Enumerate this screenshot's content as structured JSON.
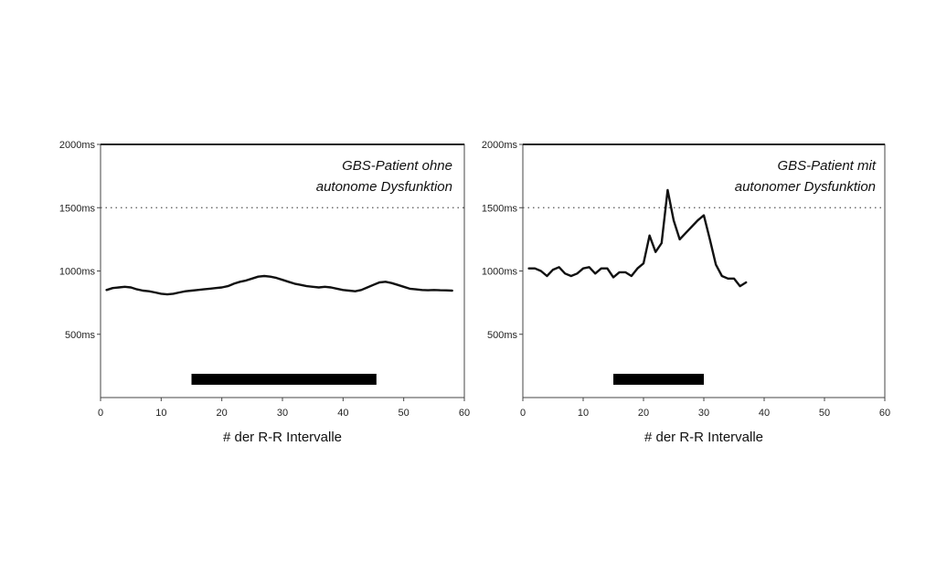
{
  "chart_data": [
    {
      "type": "line",
      "xlabel": "# der R-R Intervalle",
      "ylabel": "",
      "xlim": [
        0,
        60
      ],
      "ylim": [
        0,
        2000
      ],
      "xticks": [
        0,
        10,
        20,
        30,
        40,
        50,
        60
      ],
      "yticks": [
        {
          "value": 500,
          "label": "500ms"
        },
        {
          "value": 1000,
          "label": "1000ms"
        },
        {
          "value": 1500,
          "label": "1500ms"
        },
        {
          "value": 2000,
          "label": "2000ms"
        }
      ],
      "reference_line": 1500,
      "annotation": [
        "GBS-Patient ohne",
        "autonome Dysfunktion"
      ],
      "annotation_position": "top-right",
      "marker_bar": {
        "from": 15,
        "to": 45.5
      },
      "series": [
        {
          "x": [
            1,
            2,
            3,
            4,
            5,
            6,
            7,
            8,
            9,
            10,
            11,
            12,
            13,
            14,
            15,
            16,
            17,
            18,
            19,
            20,
            21,
            22,
            23,
            24,
            25,
            26,
            27,
            28,
            29,
            30,
            31,
            32,
            33,
            34,
            35,
            36,
            37,
            38,
            39,
            40,
            41,
            42,
            43,
            44,
            45,
            46,
            47,
            48,
            49,
            50,
            51,
            52,
            53,
            54,
            55,
            56,
            57,
            58
          ],
          "y": [
            850,
            865,
            870,
            875,
            870,
            855,
            845,
            840,
            830,
            820,
            815,
            820,
            830,
            840,
            845,
            850,
            855,
            860,
            865,
            870,
            880,
            900,
            915,
            925,
            940,
            955,
            960,
            955,
            945,
            930,
            915,
            900,
            890,
            880,
            875,
            870,
            875,
            870,
            860,
            850,
            845,
            840,
            850,
            870,
            890,
            910,
            915,
            905,
            890,
            875,
            860,
            855,
            850,
            848,
            850,
            848,
            847,
            845
          ]
        }
      ]
    },
    {
      "type": "line",
      "xlabel": "# der R-R Intervalle",
      "ylabel": "",
      "xlim": [
        0,
        60
      ],
      "ylim": [
        0,
        2000
      ],
      "xticks": [
        0,
        10,
        20,
        30,
        40,
        50,
        60
      ],
      "yticks": [
        {
          "value": 500,
          "label": "500ms"
        },
        {
          "value": 1000,
          "label": "1000ms"
        },
        {
          "value": 1500,
          "label": "1500ms"
        },
        {
          "value": 2000,
          "label": "2000ms"
        }
      ],
      "reference_line": 1500,
      "annotation": [
        "GBS-Patient mit",
        "autonomer Dysfunktion"
      ],
      "annotation_position": "top-right",
      "marker_bar": {
        "from": 15,
        "to": 30
      },
      "series": [
        {
          "x": [
            1,
            2,
            3,
            4,
            5,
            6,
            7,
            8,
            9,
            10,
            11,
            12,
            13,
            14,
            15,
            16,
            17,
            18,
            19,
            20,
            21,
            22,
            23,
            24,
            25,
            26,
            27,
            28,
            29,
            30,
            31,
            32,
            33,
            34,
            35,
            36,
            37
          ],
          "y": [
            1020,
            1020,
            1000,
            960,
            1010,
            1030,
            980,
            960,
            980,
            1020,
            1030,
            980,
            1020,
            1020,
            950,
            990,
            990,
            960,
            1020,
            1060,
            1280,
            1150,
            1220,
            1640,
            1400,
            1250,
            1300,
            1350,
            1400,
            1440,
            1250,
            1050,
            960,
            940,
            940,
            880,
            910
          ]
        }
      ]
    }
  ]
}
